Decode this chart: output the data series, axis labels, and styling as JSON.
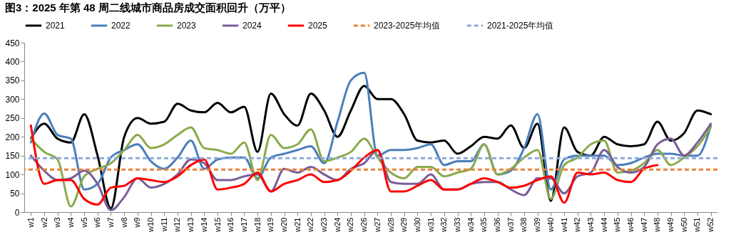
{
  "chart_data": {
    "type": "line",
    "title": "图3：2025 年第 48 周二线城市商品房成交面积回升（万平）",
    "categories": [
      "w1",
      "w2",
      "w3",
      "w4",
      "w5",
      "w6",
      "w7",
      "w8",
      "w9",
      "w10",
      "w11",
      "w12",
      "w13",
      "w14",
      "w15",
      "w16",
      "w17",
      "w18",
      "w19",
      "w20",
      "w21",
      "w22",
      "w23",
      "w24",
      "w25",
      "w26",
      "w27",
      "w28",
      "w29",
      "w30",
      "w31",
      "w32",
      "w33",
      "w34",
      "w35",
      "w36",
      "w37",
      "w38",
      "w39",
      "w40",
      "w41",
      "w42",
      "w43",
      "w44",
      "w45",
      "w46",
      "w47",
      "w48",
      "w49",
      "w50",
      "w51",
      "w52"
    ],
    "series": [
      {
        "name": "2021",
        "color": "#000000",
        "values": [
          195,
          235,
          195,
          185,
          260,
          150,
          10,
          200,
          250,
          235,
          240,
          288,
          270,
          265,
          290,
          265,
          280,
          160,
          315,
          260,
          230,
          315,
          270,
          200,
          270,
          335,
          300,
          300,
          260,
          190,
          185,
          190,
          155,
          175,
          200,
          195,
          230,
          170,
          235,
          30,
          225,
          160,
          150,
          200,
          180,
          175,
          180,
          240,
          190,
          210,
          270,
          260
        ]
      },
      {
        "name": "2022",
        "color": "#4a7ebb",
        "values": [
          185,
          262,
          205,
          195,
          60,
          75,
          145,
          165,
          180,
          135,
          115,
          145,
          190,
          115,
          140,
          145,
          145,
          90,
          145,
          155,
          165,
          175,
          130,
          240,
          350,
          370,
          150,
          165,
          165,
          170,
          180,
          125,
          135,
          135,
          180,
          100,
          110,
          170,
          260,
          60,
          140,
          150,
          150,
          150,
          125,
          130,
          145,
          155,
          155,
          150,
          150,
          230
        ]
      },
      {
        "name": "2023",
        "color": "#8aaa4a",
        "values": [
          195,
          160,
          140,
          15,
          95,
          115,
          130,
          165,
          205,
          170,
          180,
          205,
          225,
          170,
          165,
          155,
          185,
          85,
          205,
          170,
          180,
          220,
          135,
          145,
          160,
          195,
          145,
          105,
          90,
          120,
          120,
          95,
          105,
          115,
          180,
          100,
          115,
          145,
          165,
          35,
          125,
          145,
          180,
          190,
          105,
          110,
          130,
          165,
          125,
          145,
          175,
          225
        ]
      },
      {
        "name": "2024",
        "color": "#7a5c97",
        "values": [
          150,
          110,
          85,
          90,
          110,
          75,
          5,
          40,
          90,
          65,
          75,
          100,
          140,
          130,
          85,
          85,
          95,
          100,
          55,
          115,
          105,
          120,
          100,
          85,
          115,
          130,
          165,
          80,
          75,
          75,
          100,
          60,
          60,
          75,
          80,
          80,
          60,
          45,
          90,
          90,
          50,
          95,
          105,
          165,
          120,
          105,
          120,
          180,
          195,
          150,
          185,
          235
        ]
      },
      {
        "name": "2025",
        "color": "#ff0000",
        "values": [
          230,
          75,
          85,
          85,
          35,
          20,
          65,
          70,
          90,
          85,
          80,
          95,
          125,
          140,
          60,
          65,
          75,
          105,
          55,
          75,
          85,
          100,
          80,
          85,
          110,
          145,
          165,
          55,
          55,
          70,
          85,
          60,
          60,
          75,
          90,
          80,
          65,
          70,
          85,
          95,
          25,
          105,
          100,
          105,
          85,
          80,
          115,
          125,
          null,
          null,
          null,
          null
        ]
      }
    ],
    "ref_lines": [
      {
        "axis": "y",
        "value": 113,
        "label": "2023-2025年均值",
        "color": "#e8823a",
        "line_style": "dashed"
      },
      {
        "axis": "y",
        "value": 143,
        "label": "2021-2025年均值",
        "color": "#8eaadb",
        "line_style": "dashed"
      }
    ],
    "ylim": [
      0,
      450
    ],
    "yticks": [
      0,
      50,
      100,
      150,
      200,
      250,
      300,
      350,
      400,
      450
    ],
    "grid": false,
    "legend": "top"
  }
}
